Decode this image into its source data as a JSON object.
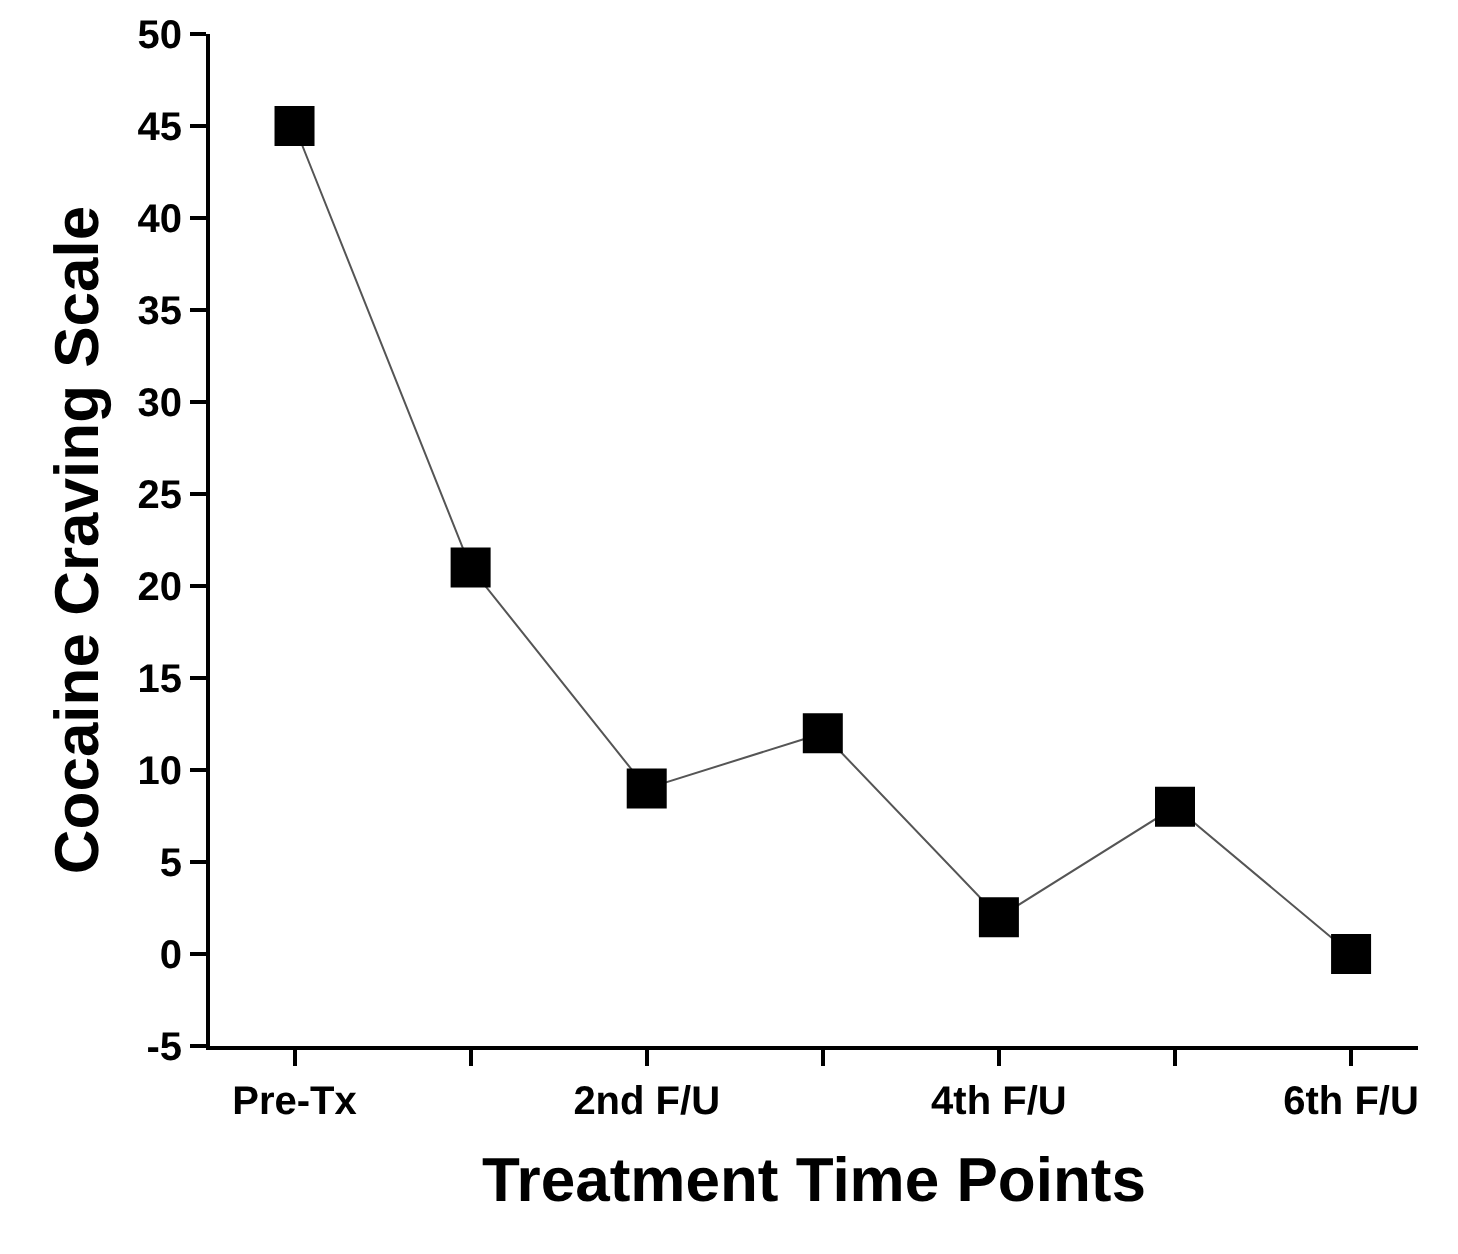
{
  "chart_data": {
    "type": "line",
    "xlabel": "Treatment Time Points",
    "ylabel": "Cocaine Craving Scale",
    "categories": [
      "Pre-Tx",
      null,
      "2nd F/U",
      null,
      "4th F/U",
      null,
      "6th F/U"
    ],
    "series": [
      {
        "color": "#000000",
        "values": [
          45,
          21,
          9,
          12,
          2,
          8,
          0
        ]
      }
    ],
    "ylim": [
      -5,
      50
    ],
    "yticks": [
      -5,
      0,
      5,
      10,
      15,
      20,
      25,
      30,
      35,
      40,
      45,
      50
    ],
    "grid": false,
    "marker": "square",
    "line_style": "solid"
  }
}
